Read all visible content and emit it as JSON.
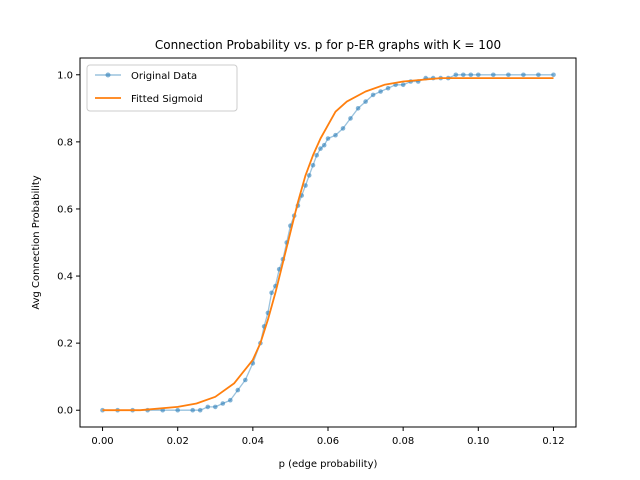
{
  "chart_data": {
    "type": "line",
    "title": "Connection Probability vs. p for p-ER graphs with K = 100",
    "xlabel": "p (edge probability)",
    "ylabel": "Avg Connection Probability",
    "xlim": [
      -0.006,
      0.126
    ],
    "ylim": [
      -0.05,
      1.05
    ],
    "xticks": [
      0.0,
      0.02,
      0.04,
      0.06,
      0.08,
      0.1,
      0.12
    ],
    "xtick_labels": [
      "0.00",
      "0.02",
      "0.04",
      "0.06",
      "0.08",
      "0.10",
      "0.12"
    ],
    "yticks": [
      0.0,
      0.2,
      0.4,
      0.6,
      0.8,
      1.0
    ],
    "ytick_labels": [
      "0.0",
      "0.2",
      "0.4",
      "0.6",
      "0.8",
      "1.0"
    ],
    "grid": false,
    "legend_position": "top-left",
    "series": [
      {
        "name": "Original Data",
        "style": "line-with-markers",
        "color": "#1f77b4",
        "x": [
          0.0,
          0.004,
          0.008,
          0.012,
          0.016,
          0.02,
          0.024,
          0.026,
          0.028,
          0.03,
          0.032,
          0.034,
          0.036,
          0.038,
          0.04,
          0.042,
          0.043,
          0.044,
          0.045,
          0.046,
          0.047,
          0.048,
          0.049,
          0.05,
          0.051,
          0.052,
          0.053,
          0.054,
          0.055,
          0.056,
          0.057,
          0.058,
          0.059,
          0.06,
          0.062,
          0.064,
          0.066,
          0.068,
          0.07,
          0.072,
          0.074,
          0.076,
          0.078,
          0.08,
          0.082,
          0.084,
          0.086,
          0.088,
          0.09,
          0.092,
          0.094,
          0.096,
          0.098,
          0.1,
          0.104,
          0.108,
          0.112,
          0.116,
          0.12
        ],
        "y": [
          0.0,
          0.0,
          0.0,
          0.0,
          0.0,
          0.0,
          0.0,
          0.0,
          0.01,
          0.01,
          0.02,
          0.03,
          0.06,
          0.09,
          0.14,
          0.2,
          0.25,
          0.29,
          0.35,
          0.37,
          0.42,
          0.45,
          0.5,
          0.55,
          0.58,
          0.61,
          0.64,
          0.67,
          0.7,
          0.73,
          0.76,
          0.78,
          0.79,
          0.81,
          0.82,
          0.84,
          0.87,
          0.9,
          0.92,
          0.94,
          0.95,
          0.96,
          0.97,
          0.97,
          0.98,
          0.98,
          0.99,
          0.99,
          0.99,
          0.99,
          1.0,
          1.0,
          1.0,
          1.0,
          1.0,
          1.0,
          1.0,
          1.0,
          1.0
        ]
      },
      {
        "name": "Fitted Sigmoid",
        "style": "line",
        "color": "#ff7f0e",
        "x": [
          0.0,
          0.01,
          0.02,
          0.025,
          0.03,
          0.035,
          0.04,
          0.042,
          0.044,
          0.046,
          0.048,
          0.05,
          0.052,
          0.054,
          0.056,
          0.058,
          0.06,
          0.062,
          0.065,
          0.07,
          0.075,
          0.08,
          0.09,
          0.1,
          0.11,
          0.12
        ],
        "y": [
          0.0,
          0.0,
          0.01,
          0.02,
          0.04,
          0.08,
          0.15,
          0.2,
          0.27,
          0.35,
          0.44,
          0.53,
          0.62,
          0.7,
          0.76,
          0.81,
          0.85,
          0.89,
          0.92,
          0.95,
          0.97,
          0.98,
          0.99,
          0.99,
          0.99,
          0.99
        ]
      }
    ]
  }
}
